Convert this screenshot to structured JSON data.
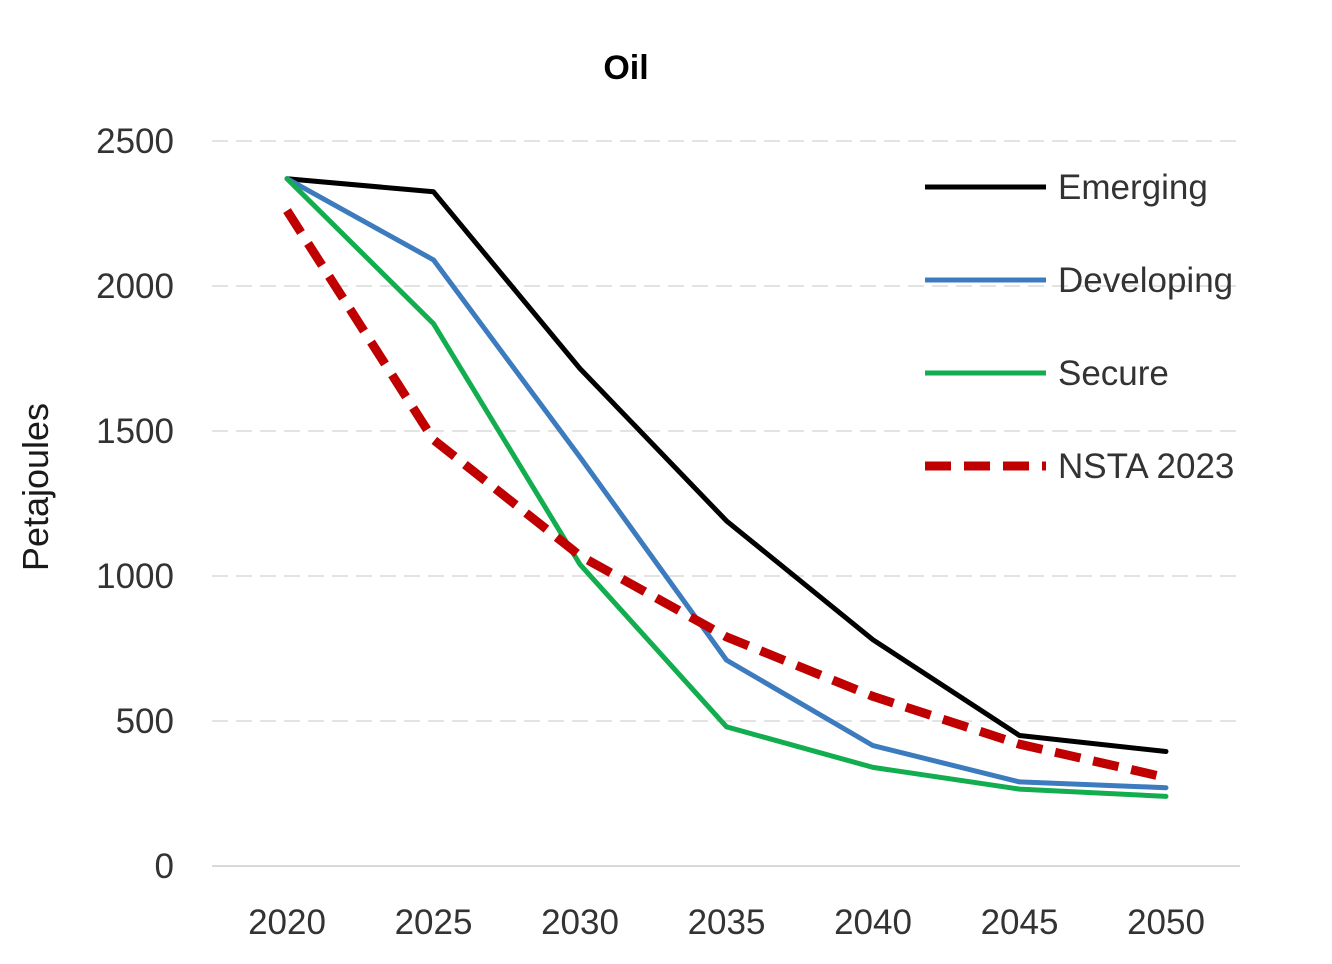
{
  "chart_data": {
    "type": "line",
    "title": "Oil",
    "xlabel": "",
    "ylabel": "Petajoules",
    "ylim": [
      0,
      2500
    ],
    "yticks": [
      0,
      500,
      1000,
      1500,
      2000,
      2500
    ],
    "categories": [
      "2020",
      "2025",
      "2030",
      "2035",
      "2040",
      "2045",
      "2050"
    ],
    "grid": true,
    "legend_position": "top-right",
    "series": [
      {
        "name": "Emerging",
        "color": "#000000",
        "dash": "solid",
        "values": [
          2370,
          2325,
          1715,
          1190,
          780,
          450,
          395
        ]
      },
      {
        "name": "Developing",
        "color": "#3d7bbf",
        "dash": "solid",
        "values": [
          2370,
          2090,
          1410,
          710,
          415,
          290,
          270
        ]
      },
      {
        "name": "Secure",
        "color": "#12ad4f",
        "dash": "solid",
        "values": [
          2370,
          1870,
          1040,
          480,
          340,
          265,
          240
        ]
      },
      {
        "name": "NSTA 2023",
        "color": "#c00000",
        "dash": "dashed",
        "values": [
          2260,
          1470,
          1070,
          790,
          585,
          420,
          305
        ]
      }
    ]
  }
}
